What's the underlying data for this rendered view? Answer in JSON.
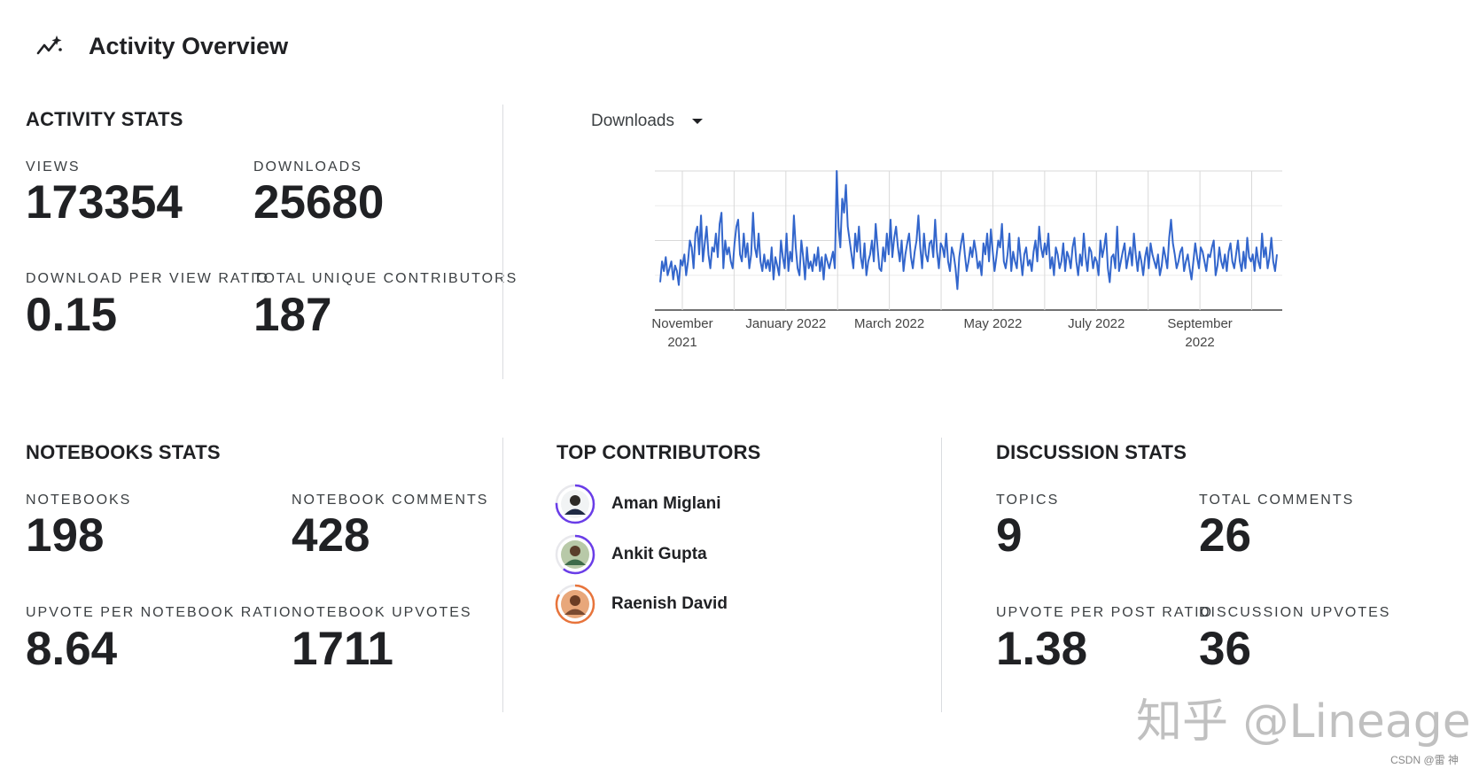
{
  "header": {
    "title": "Activity Overview",
    "icon": "trend-sparkle-icon"
  },
  "activity": {
    "title": "ACTIVITY STATS",
    "views_label": "VIEWS",
    "views": "173354",
    "downloads_label": "DOWNLOADS",
    "downloads": "25680",
    "ratio_label": "DOWNLOAD PER VIEW RATIO",
    "ratio": "0.15",
    "contributors_label": "TOTAL UNIQUE CONTRIBUTORS",
    "contributors": "187"
  },
  "chart_selector": {
    "selected": "Downloads"
  },
  "chart_data": {
    "type": "line",
    "ylim": [
      0,
      100
    ],
    "yticks": [
      0,
      50,
      100
    ],
    "xticks": [
      "November 2021",
      "January 2022",
      "March 2022",
      "May 2022",
      "July 2022",
      "September 2022"
    ],
    "grid": true,
    "color": "#3366cc",
    "series": [
      {
        "values": [
          20,
          35,
          28,
          38,
          25,
          30,
          35,
          22,
          32,
          28,
          18,
          36,
          32,
          40,
          25,
          35,
          50,
          45,
          30,
          55,
          60,
          40,
          68,
          35,
          48,
          60,
          40,
          30,
          45,
          42,
          55,
          38,
          62,
          70,
          30,
          50,
          40,
          45,
          35,
          30,
          48,
          60,
          65,
          40,
          35,
          55,
          38,
          48,
          30,
          40,
          70,
          45,
          38,
          55,
          35,
          28,
          40,
          30,
          36,
          28,
          45,
          22,
          38,
          32,
          25,
          50,
          38,
          30,
          55,
          28,
          42,
          35,
          68,
          45,
          30,
          25,
          50,
          38,
          22,
          45,
          30,
          35,
          28,
          40,
          32,
          45,
          28,
          38,
          22,
          40,
          35,
          30,
          36,
          42,
          30,
          100,
          60,
          45,
          80,
          70,
          90,
          60,
          50,
          40,
          30,
          55,
          42,
          60,
          38,
          30,
          48,
          25,
          35,
          40,
          50,
          35,
          62,
          45,
          30,
          28,
          45,
          35,
          55,
          40,
          65,
          38,
          52,
          60,
          45,
          35,
          50,
          28,
          40,
          48,
          55,
          38,
          30,
          42,
          50,
          68,
          45,
          30,
          55,
          40,
          35,
          48,
          50,
          38,
          65,
          42,
          30,
          48,
          45,
          38,
          55,
          35,
          28,
          45,
          40,
          30,
          15,
          38,
          48,
          55,
          40,
          28,
          35,
          45,
          38,
          50,
          42,
          30,
          35,
          25,
          48,
          40,
          55,
          35,
          58,
          42,
          28,
          38,
          50,
          45,
          62,
          35,
          30,
          40,
          55,
          28,
          42,
          35,
          30,
          52,
          38,
          25,
          40,
          45,
          32,
          36,
          28,
          42,
          50,
          35,
          60,
          45,
          38,
          48,
          40,
          55,
          30,
          38,
          25,
          45,
          40,
          30,
          35,
          48,
          28,
          42,
          38,
          30,
          45,
          52,
          35,
          25,
          40,
          32,
          55,
          38,
          28,
          45,
          42,
          30,
          38,
          35,
          25,
          50,
          38,
          45,
          55,
          30,
          20,
          38,
          40,
          30,
          60,
          28,
          35,
          42,
          48,
          30,
          38,
          45,
          32,
          55,
          40,
          28,
          42,
          35,
          25,
          38,
          45,
          30,
          48,
          40,
          35,
          30,
          40,
          25,
          32,
          45,
          38,
          30,
          52,
          65,
          48,
          40,
          30,
          35,
          42,
          45,
          28,
          35,
          40,
          30,
          22,
          35,
          48,
          38,
          30,
          45,
          42,
          35,
          28,
          40,
          38,
          45,
          50,
          25,
          32,
          45,
          35,
          30,
          40,
          28,
          42,
          48,
          35,
          30,
          40,
          50,
          35,
          28,
          42,
          30,
          52,
          38,
          35,
          40,
          28,
          45,
          35,
          30,
          55,
          38,
          45,
          30,
          38,
          52,
          35,
          28,
          40
        ]
      }
    ]
  },
  "notebooks": {
    "title": "NOTEBOOKS STATS",
    "notebooks_label": "NOTEBOOKS",
    "notebooks": "198",
    "comments_label": "NOTEBOOK COMMENTS",
    "comments": "428",
    "ratio_label": "UPVOTE PER NOTEBOOK RATIO",
    "ratio": "8.64",
    "upvotes_label": "NOTEBOOK UPVOTES",
    "upvotes": "1711"
  },
  "top_contributors": {
    "title": "TOP CONTRIBUTORS",
    "items": [
      {
        "name": "Aman Miglani",
        "ring": "#6a3de8"
      },
      {
        "name": "Ankit Gupta",
        "ring": "#6a3de8"
      },
      {
        "name": "Raenish David",
        "ring": "#e8743b"
      }
    ]
  },
  "discussion": {
    "title": "DISCUSSION STATS",
    "topics_label": "TOPICS",
    "topics": "9",
    "comments_label": "TOTAL COMMENTS",
    "comments": "26",
    "ratio_label": "UPVOTE PER POST RATIO",
    "ratio": "1.38",
    "upvotes_label": "DISCUSSION UPVOTES",
    "upvotes": "36"
  },
  "watermark": {
    "text": "知乎 @Lineage",
    "csdn": "CSDN @雷 神"
  }
}
